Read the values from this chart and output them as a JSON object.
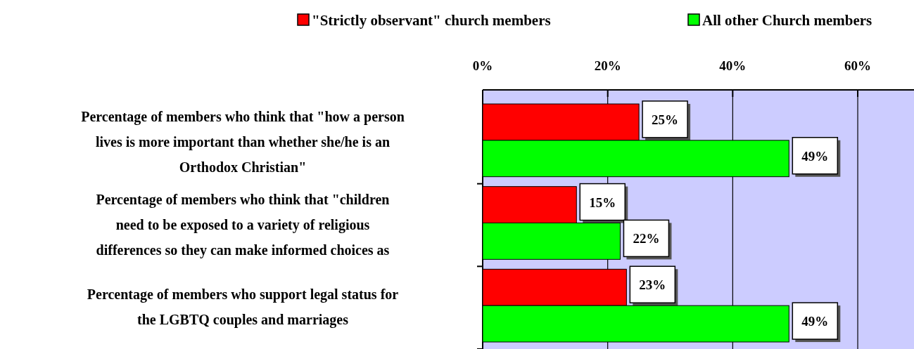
{
  "chart_data": {
    "type": "bar",
    "orientation": "horizontal",
    "categories": [
      "Percentage of members who think that \"how a person\nlives is more important than whether she/he is an\nOrthodox Christian\"",
      "Percentage of members who think that \"children\nneed to be exposed to a variety of religious\ndifferences so they can make informed choices as",
      "Percentage of members who support legal status for\nthe LGBTQ couples and marriages"
    ],
    "series": [
      {
        "name": "\"Strictly observant\" church members",
        "color": "#ff0000",
        "values": [
          25,
          15,
          23
        ],
        "value_labels": [
          "25%",
          "15%",
          "23%"
        ]
      },
      {
        "name": "All other Church members",
        "color": "#00ff00",
        "values": [
          49,
          22,
          49
        ],
        "value_labels": [
          "49%",
          "22%",
          "49%"
        ]
      }
    ],
    "xlim": [
      0,
      69
    ],
    "xticks": [
      {
        "value": 0,
        "label": "0%"
      },
      {
        "value": 20,
        "label": "20%"
      },
      {
        "value": 40,
        "label": "40%"
      },
      {
        "value": 60,
        "label": "60%"
      }
    ],
    "grid": "x",
    "legend": "top"
  }
}
